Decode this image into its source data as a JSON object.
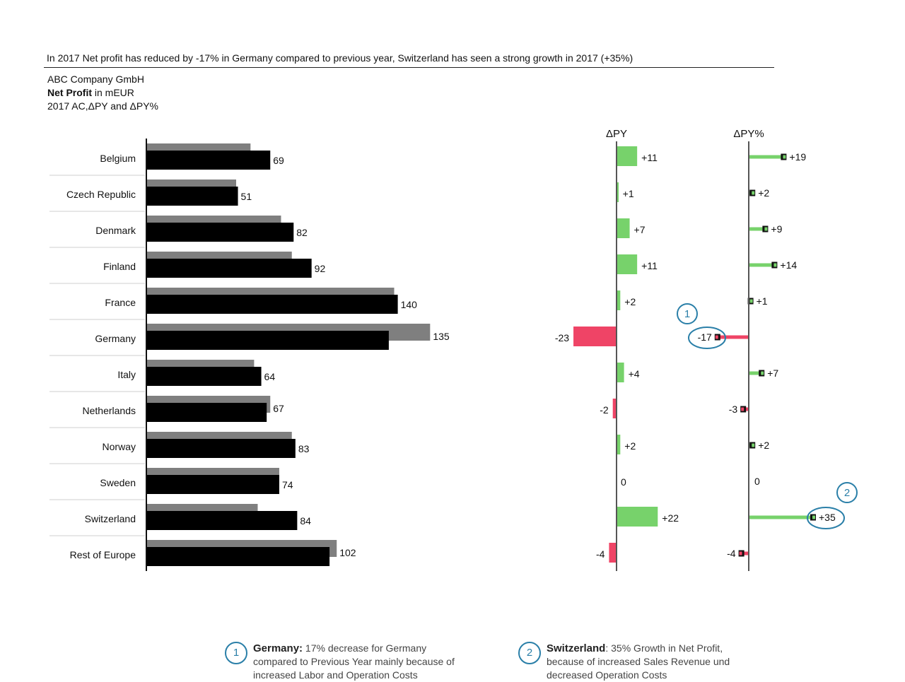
{
  "headline": "In 2017 Net profit has reduced by -17% in Germany compared to previous year, Switzerland has seen a strong growth in 2017 (+35%)",
  "company": "ABC Company GmbH",
  "measure_bold": "Net Profit",
  "measure_unit": " in mEUR",
  "scenario": "2017 AC,ΔPY and ΔPY%",
  "colors": {
    "ac": "#000000",
    "py": "#7f7f7f",
    "pos": "#77d26b",
    "neg": "#ef4466",
    "callout": "#2a7fa8",
    "axis": "#555555"
  },
  "chart_data": [
    {
      "type": "bar",
      "categories": [
        "Belgium",
        "Czech Republic",
        "Denmark",
        "Finland",
        "France",
        "Germany",
        "Italy",
        "Netherlands",
        "Norway",
        "Sweden",
        "Switzerland",
        "Rest of Europe"
      ],
      "series": [
        {
          "values": [
            58,
            50,
            75,
            81,
            138,
            158,
            60,
            69,
            81,
            74,
            62,
            106
          ]
        },
        {
          "values": [
            69,
            51,
            82,
            92,
            140,
            135,
            64,
            67,
            83,
            74,
            84,
            102
          ]
        }
      ],
      "data_labels": [
        "69",
        "51",
        "82",
        "92",
        "140",
        "135",
        "64",
        "67",
        "83",
        "74",
        "84",
        "102"
      ]
    },
    {
      "type": "bar",
      "title": "ΔPY",
      "categories": [
        "Belgium",
        "Czech Republic",
        "Denmark",
        "Finland",
        "France",
        "Germany",
        "Italy",
        "Netherlands",
        "Norway",
        "Sweden",
        "Switzerland",
        "Rest of Europe"
      ],
      "values": [
        11,
        1,
        7,
        11,
        2,
        -23,
        4,
        -2,
        2,
        0,
        22,
        -4
      ],
      "data_labels": [
        "+11",
        "+1",
        "+7",
        "+11",
        "+2",
        "-23",
        "+4",
        "-2",
        "+2",
        "0",
        "+22",
        "-4"
      ]
    },
    {
      "type": "bar",
      "title": "ΔPY%",
      "categories": [
        "Belgium",
        "Czech Republic",
        "Denmark",
        "Finland",
        "France",
        "Germany",
        "Italy",
        "Netherlands",
        "Norway",
        "Sweden",
        "Switzerland",
        "Rest of Europe"
      ],
      "values": [
        19,
        2,
        9,
        14,
        1,
        -17,
        7,
        -3,
        2,
        0,
        35,
        -4
      ],
      "data_labels": [
        "+19",
        "+2",
        "+9",
        "+14",
        "+1",
        "-17",
        "+7",
        "-3",
        "+2",
        "0",
        "+35",
        "-4"
      ]
    }
  ],
  "callouts": [
    {
      "number": "1",
      "row": 5
    },
    {
      "number": "2",
      "row": 10
    }
  ],
  "annotations": [
    {
      "number": "1",
      "bold": "Germany:",
      "text": " 17% decrease for Germany compared to Previous Year mainly because of increased Labor and Operation Costs"
    },
    {
      "number": "2",
      "bold": "Switzerland",
      "text": ":  35% Growth in Net Profit, because of increased Sales Revenue und decreased Operation Costs"
    }
  ]
}
